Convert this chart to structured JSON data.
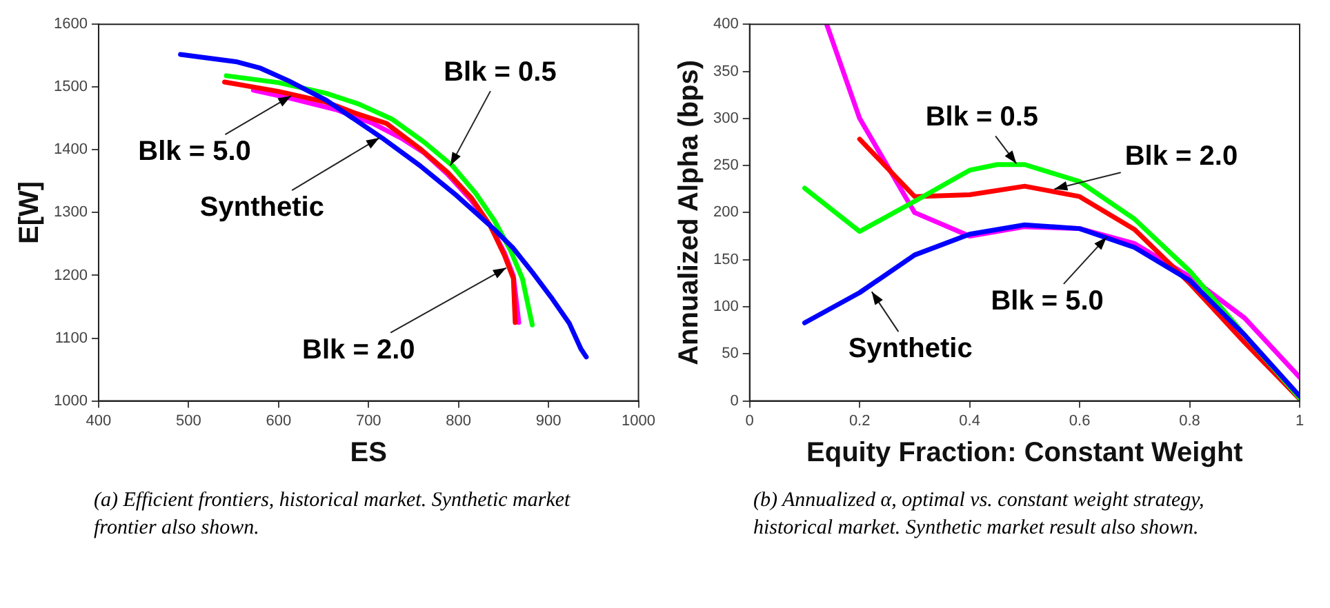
{
  "chart_data": [
    {
      "type": "line",
      "xlabel": "ES",
      "ylabel": "E[W]",
      "xlim": [
        400,
        1000
      ],
      "xticks": [
        400,
        500,
        600,
        700,
        800,
        900,
        1000
      ],
      "ylim": [
        1000,
        1600
      ],
      "yticks": [
        1000,
        1100,
        1200,
        1300,
        1400,
        1500,
        1600
      ],
      "grid": false,
      "legend": false,
      "marker": "none",
      "line_style": "solid",
      "series": [
        {
          "color": "#0000ff",
          "x": [
            491,
            554,
            580,
            611,
            653,
            684,
            715,
            757,
            798,
            840,
            861,
            882,
            903,
            923,
            936,
            942
          ],
          "values": [
            1552,
            1540,
            1530,
            1510,
            1479,
            1449,
            1419,
            1375,
            1327,
            1273,
            1243,
            1205,
            1165,
            1124,
            1083,
            1070
          ]
        },
        {
          "color": "#00ff00",
          "x": [
            542,
            600,
            653,
            689,
            726,
            762,
            793,
            819,
            840,
            858,
            871,
            882
          ],
          "values": [
            1518,
            1507,
            1490,
            1473,
            1449,
            1412,
            1375,
            1331,
            1287,
            1239,
            1195,
            1121
          ]
        },
        {
          "color": "#ff0000",
          "x": [
            540,
            600,
            653,
            684,
            720,
            757,
            788,
            814,
            835,
            851,
            861,
            863
          ],
          "values": [
            1508,
            1493,
            1476,
            1459,
            1442,
            1402,
            1364,
            1324,
            1280,
            1232,
            1195,
            1125
          ]
        },
        {
          "color": "#ff00ff",
          "x": [
            572,
            611,
            664,
            705,
            736,
            762,
            788,
            814,
            835,
            851,
            861,
            867
          ],
          "values": [
            1495,
            1483,
            1464,
            1442,
            1419,
            1395,
            1361,
            1320,
            1280,
            1236,
            1199,
            1125
          ]
        }
      ],
      "annotations": [
        {
          "text": "Blk = 0.5",
          "x": 791,
          "y": 1375
        },
        {
          "text": "Blk = 5.0",
          "x": 614,
          "y": 1486
        },
        {
          "text": "Synthetic",
          "x": 712,
          "y": 1419
        },
        {
          "text": "Blk = 2.0",
          "x": 853,
          "y": 1212
        },
        "(a) Efficient frontiers, historical market. Synthetic market frontier also shown."
      ]
    },
    {
      "type": "line",
      "xlabel": "Equity Fraction: Constant Weight",
      "ylabel": "Annualized Alpha (bps)",
      "xlim": [
        0,
        1
      ],
      "xticks": [
        0,
        0.2,
        0.4,
        0.6,
        0.8,
        1
      ],
      "ylim": [
        0,
        400
      ],
      "yticks": [
        0,
        50,
        100,
        150,
        200,
        250,
        300,
        350,
        400
      ],
      "grid": false,
      "legend": false,
      "marker": "none",
      "line_style": "solid",
      "series": [
        {
          "color": "#0000ff",
          "x": [
            0.1,
            0.2,
            0.3,
            0.4,
            0.5,
            0.6,
            0.7,
            0.8,
            0.9,
            1.0
          ],
          "values": [
            83,
            115,
            155,
            177,
            187,
            183,
            163,
            128,
            70,
            5
          ]
        },
        {
          "color": "#00ff00",
          "x": [
            0.1,
            0.2,
            0.3,
            0.4,
            0.45,
            0.5,
            0.6,
            0.7,
            0.8,
            0.9,
            1.0
          ],
          "values": [
            226,
            180,
            212,
            245,
            251,
            251,
            233,
            193,
            138,
            70,
            3
          ]
        },
        {
          "color": "#ff0000",
          "x": [
            0.2,
            0.3,
            0.4,
            0.5,
            0.6,
            0.7,
            0.8,
            0.9,
            1.0
          ],
          "values": [
            278,
            217,
            219,
            228,
            217,
            182,
            125,
            62,
            2
          ]
        },
        {
          "color": "#ff00ff",
          "x": [
            0.14,
            0.2,
            0.3,
            0.4,
            0.5,
            0.6,
            0.7,
            0.8,
            0.9,
            1.0
          ],
          "values": [
            400,
            300,
            200,
            175,
            185,
            183,
            167,
            132,
            88,
            25
          ]
        }
      ],
      "annotations": [
        {
          "text": "Blk = 0.5",
          "x": 0.485,
          "y": 252
        },
        {
          "text": "Blk = 2.0",
          "x": 0.554,
          "y": 225
        },
        {
          "text": "Blk = 5.0",
          "x": 0.649,
          "y": 174
        },
        {
          "text": "Synthetic",
          "x": 0.222,
          "y": 116
        },
        "(b) Annualized α, optimal vs. constant weight strategy, historical market. Synthetic market result also shown."
      ]
    }
  ]
}
